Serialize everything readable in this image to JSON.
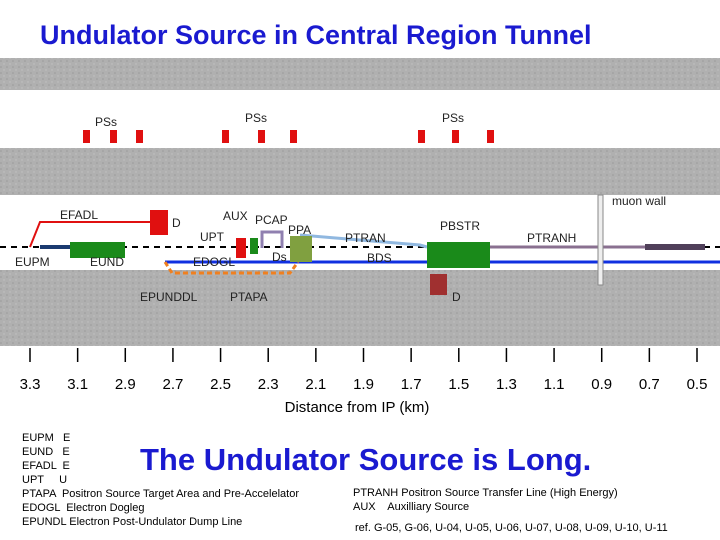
{
  "header": {
    "title": "Undulator Source in Central Region Tunnel"
  },
  "surface": {
    "labels": [
      "PSs",
      "PSs",
      "PSs"
    ]
  },
  "tunnel": {
    "labels": {
      "efadl": "EFADL",
      "d1": "D",
      "aux": "AUX",
      "pcap": "PCAP",
      "ppa": "PPA",
      "upt": "UPT",
      "ptran": "PTRAN",
      "pbstr": "PBSTR",
      "ptranh": "PTRANH",
      "muon_wall": "muon wall",
      "eupm": "EUPM",
      "eund": "EUND",
      "edogl": "EDOGL",
      "ds": "Ds",
      "bds": "BDS",
      "epunddl": "EPUNDDL",
      "ptapa": "PTAPA",
      "d2": "D"
    }
  },
  "axis": {
    "ticks": [
      "3.3",
      "3.1",
      "2.9",
      "2.7",
      "2.5",
      "2.3",
      "2.1",
      "1.9",
      "1.7",
      "1.5",
      "1.3",
      "1.1",
      "0.9",
      "0.7",
      "0.5"
    ],
    "title": "Distance from IP (km)"
  },
  "headline": "The Undulator Source is Long.",
  "legend": {
    "left": [
      "EUPM   E",
      "EUND   E",
      "EFADL  E",
      "UPT     U",
      "PTAPA  Positron Source Target Area and Pre-Accelelator",
      "EDOGL  Electron Dogleg",
      "EPUNDL Electron Post-Undulator Dump Line"
    ],
    "right": [
      "PTRANH Positron Source Transfer Line (High Energy)",
      "AUX    Auxilliary Source"
    ],
    "ref": "ref. G-05, G-06, U-04, U-05, U-06, U-07, U-08, U-09, U-10, U-11"
  }
}
